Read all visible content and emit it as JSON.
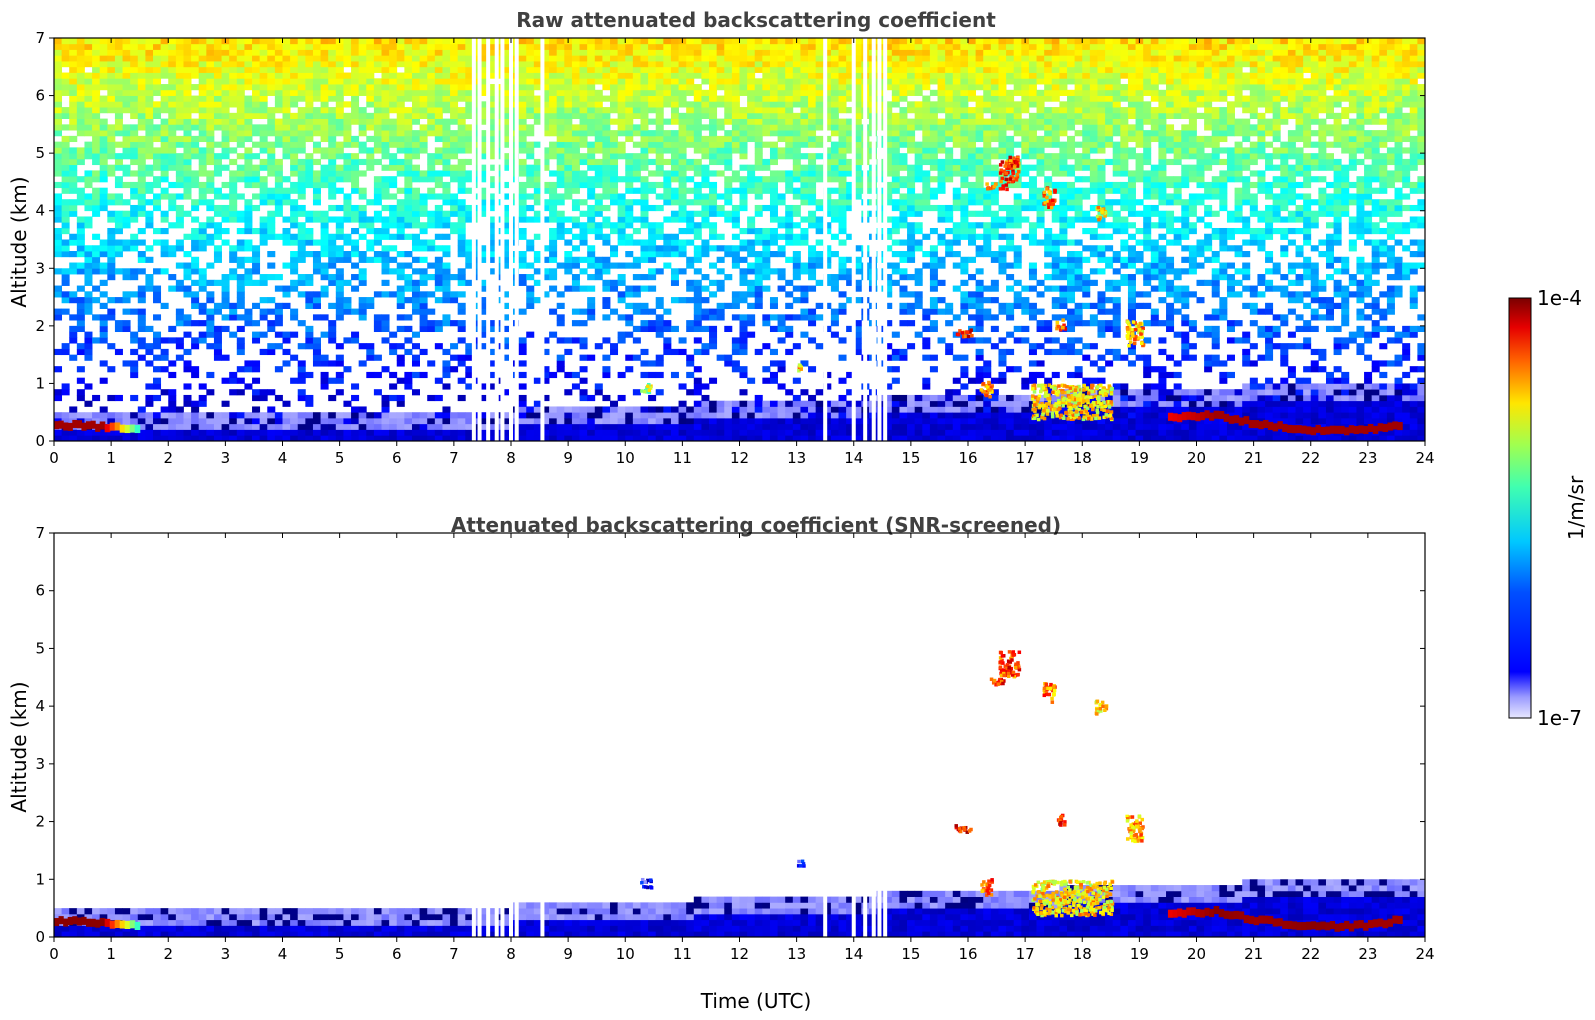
{
  "chart_data": [
    {
      "type": "heatmap",
      "title": "Raw attenuated backscattering coefficient",
      "ylabel": "Altitude (km)",
      "xlabel": "",
      "xlim": [
        0,
        24
      ],
      "ylim": [
        0,
        7
      ],
      "xticks": [
        0,
        1,
        2,
        3,
        4,
        5,
        6,
        7,
        8,
        9,
        10,
        11,
        12,
        13,
        14,
        15,
        16,
        17,
        18,
        19,
        20,
        21,
        22,
        23,
        24
      ],
      "yticks": [
        0,
        1,
        2,
        3,
        4,
        5,
        6,
        7
      ],
      "noise_top_level": 0.75,
      "gaps_utc": [
        7.35,
        7.45,
        7.6,
        7.75,
        7.85,
        8.0,
        8.1,
        8.55,
        13.5,
        14.0,
        14.2,
        14.35,
        14.45,
        14.55
      ],
      "clouds": [
        {
          "t": 16.7,
          "alt": 4.75,
          "w": 0.35,
          "h": 0.45,
          "level": 0.95
        },
        {
          "t": 17.4,
          "alt": 4.25,
          "w": 0.2,
          "h": 0.35,
          "level": 0.9
        },
        {
          "t": 16.5,
          "alt": 4.45,
          "w": 0.4,
          "h": 0.1,
          "level": 0.95
        },
        {
          "t": 18.3,
          "alt": 4.0,
          "w": 0.2,
          "h": 0.25,
          "level": 0.8
        },
        {
          "t": 15.9,
          "alt": 1.9,
          "w": 0.3,
          "h": 0.12,
          "level": 0.97
        },
        {
          "t": 17.6,
          "alt": 2.05,
          "w": 0.15,
          "h": 0.2,
          "level": 0.9
        },
        {
          "t": 18.9,
          "alt": 1.9,
          "w": 0.3,
          "h": 0.45,
          "level": 0.85
        },
        {
          "t": 17.8,
          "alt": 0.7,
          "w": 1.4,
          "h": 0.6,
          "level": 0.8
        },
        {
          "t": 16.3,
          "alt": 0.9,
          "w": 0.2,
          "h": 0.3,
          "level": 0.9
        },
        {
          "t": 10.35,
          "alt": 0.95,
          "w": 0.2,
          "h": 0.15,
          "level": 0.7
        },
        {
          "t": 13.05,
          "alt": 1.3,
          "w": 0.1,
          "h": 0.1,
          "level": 0.8
        }
      ],
      "boundary_layer": [
        {
          "t": 0.0,
          "alt": 0.28,
          "level": 0.97
        },
        {
          "t": 0.8,
          "alt": 0.25,
          "level": 0.97
        },
        {
          "t": 1.5,
          "alt": 0.2,
          "level": 0.4
        },
        {
          "t": 19.5,
          "alt": 0.4,
          "level": 0.9
        },
        {
          "t": 20.3,
          "alt": 0.45,
          "level": 0.97
        },
        {
          "t": 21.0,
          "alt": 0.3,
          "level": 0.97
        },
        {
          "t": 22.0,
          "alt": 0.18,
          "level": 0.97
        },
        {
          "t": 23.0,
          "alt": 0.2,
          "level": 0.97
        },
        {
          "t": 23.6,
          "alt": 0.3,
          "level": 0.97
        }
      ]
    },
    {
      "type": "heatmap",
      "title": "Attenuated backscattering coefficient (SNR-screened)",
      "ylabel": "Altitude (km)",
      "xlabel": "Time (UTC)",
      "xlim": [
        0,
        24
      ],
      "ylim": [
        0,
        7
      ],
      "xticks": [
        0,
        1,
        2,
        3,
        4,
        5,
        6,
        7,
        8,
        9,
        10,
        11,
        12,
        13,
        14,
        15,
        16,
        17,
        18,
        19,
        20,
        21,
        22,
        23,
        24
      ],
      "yticks": [
        0,
        1,
        2,
        3,
        4,
        5,
        6,
        7
      ],
      "noise_top_level": 0,
      "gaps_utc": [
        7.35,
        7.45,
        7.6,
        7.75,
        7.85,
        8.0,
        8.1,
        8.55,
        13.5,
        14.0,
        14.2,
        14.35,
        14.45,
        14.55
      ],
      "clouds": [
        {
          "t": 16.7,
          "alt": 4.75,
          "w": 0.35,
          "h": 0.45,
          "level": 0.95
        },
        {
          "t": 17.4,
          "alt": 4.25,
          "w": 0.2,
          "h": 0.35,
          "level": 0.9
        },
        {
          "t": 16.5,
          "alt": 4.45,
          "w": 0.4,
          "h": 0.1,
          "level": 0.99
        },
        {
          "t": 18.3,
          "alt": 4.0,
          "w": 0.2,
          "h": 0.25,
          "level": 0.8
        },
        {
          "t": 15.9,
          "alt": 1.9,
          "w": 0.3,
          "h": 0.12,
          "level": 0.99
        },
        {
          "t": 17.6,
          "alt": 2.05,
          "w": 0.15,
          "h": 0.2,
          "level": 0.99
        },
        {
          "t": 18.9,
          "alt": 1.9,
          "w": 0.3,
          "h": 0.45,
          "level": 0.85
        },
        {
          "t": 17.8,
          "alt": 0.7,
          "w": 1.4,
          "h": 0.6,
          "level": 0.8
        },
        {
          "t": 16.3,
          "alt": 0.9,
          "w": 0.2,
          "h": 0.3,
          "level": 0.9
        },
        {
          "t": 10.35,
          "alt": 0.95,
          "w": 0.2,
          "h": 0.15,
          "level": 0.3
        },
        {
          "t": 13.05,
          "alt": 1.3,
          "w": 0.1,
          "h": 0.1,
          "level": 0.3
        }
      ],
      "boundary_layer": [
        {
          "t": 0.0,
          "alt": 0.28,
          "level": 0.99
        },
        {
          "t": 0.8,
          "alt": 0.25,
          "level": 0.99
        },
        {
          "t": 1.5,
          "alt": 0.2,
          "level": 0.4
        },
        {
          "t": 19.5,
          "alt": 0.4,
          "level": 0.9
        },
        {
          "t": 20.3,
          "alt": 0.45,
          "level": 0.99
        },
        {
          "t": 21.0,
          "alt": 0.3,
          "level": 0.97
        },
        {
          "t": 22.0,
          "alt": 0.18,
          "level": 0.99
        },
        {
          "t": 23.0,
          "alt": 0.2,
          "level": 0.97
        },
        {
          "t": 23.6,
          "alt": 0.3,
          "level": 0.97
        }
      ]
    }
  ],
  "colorbar": {
    "max_label": "1e-4",
    "min_label": "1e-7",
    "unit_label": "1/m/sr",
    "colormap": "jet"
  }
}
